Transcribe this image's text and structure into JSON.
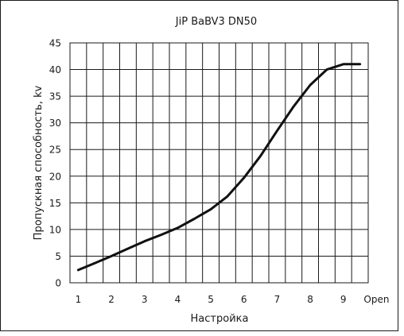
{
  "chart_data": {
    "type": "line",
    "title": "JiP BaBV3 DN50",
    "xlabel": "Настройка",
    "ylabel": "Пропускная способность, kv",
    "categories": [
      "1",
      "2",
      "3",
      "4",
      "5",
      "6",
      "7",
      "8",
      "9",
      "Open"
    ],
    "yticks": [
      "0",
      "5",
      "10",
      "15",
      "20",
      "25",
      "30",
      "35",
      "40",
      "45"
    ],
    "ylim": [
      0,
      45
    ],
    "xlim": [
      0.75,
      9.75
    ],
    "grid": true,
    "x_grid_step": 0.5,
    "y_grid_step": 5,
    "series": [
      {
        "x": [
          1,
          1.5,
          2,
          2.5,
          3,
          3.5,
          4,
          4.5,
          5,
          5.5,
          6,
          6.5,
          7,
          7.5,
          8,
          8.5,
          9,
          9.5
        ],
        "y": [
          2.4,
          3.7,
          5.0,
          6.4,
          7.8,
          9.0,
          10.3,
          12.0,
          13.8,
          16.2,
          19.7,
          23.8,
          28.5,
          33.1,
          37.1,
          40.0,
          41.0,
          41.0
        ]
      }
    ]
  }
}
